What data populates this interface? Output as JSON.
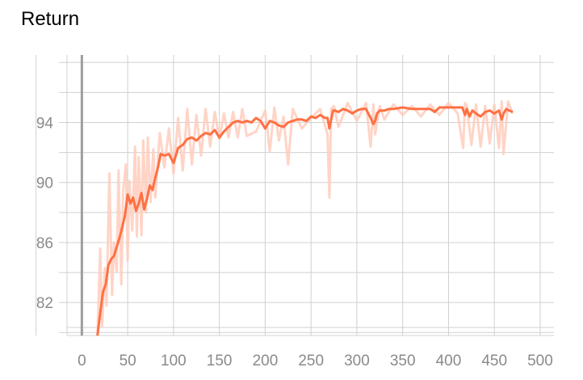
{
  "chart_data": {
    "type": "line",
    "title": "Return",
    "xlabel": "",
    "ylabel": "",
    "xlim": [
      -25,
      515
    ],
    "ylim": [
      79.8,
      98.5
    ],
    "x_ticks": [
      0,
      50,
      100,
      150,
      200,
      250,
      300,
      350,
      400,
      450,
      500
    ],
    "y_ticks": [
      82,
      86,
      90,
      94
    ],
    "grid": true,
    "colors": {
      "smoothed": "#ff7043",
      "raw": "#ffccbc",
      "zero_line": "#9e9e9e",
      "grid": "#d0d0d0",
      "tick_label": "#8a8a8a"
    },
    "series": [
      {
        "x": [
          17,
          20,
          23,
          26,
          29,
          32,
          35,
          38,
          41,
          44,
          47,
          50,
          53,
          56,
          59,
          62,
          65,
          68,
          71,
          74,
          77,
          80,
          83,
          86,
          90,
          95,
          100,
          105,
          110,
          115,
          120,
          125,
          130,
          135,
          140,
          145,
          150,
          155,
          160,
          165,
          170,
          175,
          180,
          185,
          190,
          195,
          200,
          205,
          210,
          215,
          220,
          225,
          230,
          235,
          240,
          245,
          250,
          255,
          260,
          265,
          268,
          270,
          272,
          274,
          276,
          280,
          285,
          290,
          295,
          300,
          305,
          310,
          315,
          318,
          320,
          322,
          325,
          330,
          335,
          340,
          350,
          360,
          370,
          380,
          385,
          390,
          400,
          410,
          415,
          418,
          420,
          423,
          426,
          430,
          435,
          440,
          445,
          450,
          455,
          458,
          460,
          463,
          466,
          470
        ],
        "values": [
          79.8,
          81.3,
          82.7,
          83.2,
          84.5,
          84.9,
          85.1,
          85.7,
          86.3,
          87.0,
          87.8,
          89.2,
          88.6,
          89.0,
          88.1,
          88.6,
          89.3,
          88.2,
          88.9,
          89.8,
          89.5,
          90.3,
          91.0,
          91.9,
          91.8,
          91.9,
          91.3,
          92.3,
          92.5,
          92.9,
          93.0,
          92.8,
          93.1,
          93.3,
          93.2,
          93.5,
          93.0,
          93.4,
          93.7,
          94.0,
          94.1,
          94.0,
          94.1,
          94.0,
          94.3,
          94.1,
          93.6,
          94.1,
          94.0,
          93.8,
          93.7,
          94.0,
          94.1,
          94.2,
          94.2,
          94.1,
          94.4,
          94.3,
          94.5,
          94.3,
          94.3,
          93.6,
          94.2,
          94.8,
          94.8,
          94.7,
          94.9,
          94.8,
          94.6,
          94.8,
          94.9,
          94.9,
          94.3,
          93.9,
          94.1,
          94.6,
          94.8,
          94.8,
          94.9,
          94.9,
          95.0,
          94.9,
          94.9,
          94.9,
          94.7,
          95.0,
          95.0,
          95.0,
          95.0,
          94.5,
          94.9,
          94.4,
          94.8,
          94.6,
          94.4,
          94.7,
          94.8,
          94.6,
          94.8,
          94.2,
          94.6,
          94.9,
          94.8,
          94.7
        ]
      },
      {
        "x": [
          17,
          20,
          22,
          25,
          27,
          30,
          33,
          35,
          38,
          40,
          43,
          45,
          48,
          50,
          52,
          55,
          58,
          60,
          62,
          65,
          67,
          70,
          72,
          75,
          78,
          80,
          85,
          90,
          95,
          100,
          105,
          110,
          115,
          120,
          125,
          130,
          135,
          140,
          145,
          150,
          155,
          160,
          165,
          170,
          175,
          180,
          190,
          200,
          205,
          210,
          215,
          220,
          225,
          230,
          240,
          250,
          260,
          268,
          270,
          272,
          275,
          280,
          290,
          300,
          310,
          315,
          318,
          320,
          325,
          330,
          340,
          350,
          360,
          370,
          380,
          390,
          400,
          410,
          416,
          418,
          420,
          425,
          430,
          435,
          440,
          445,
          450,
          455,
          458,
          460,
          465,
          470
        ],
        "values": [
          79.8,
          85.6,
          80.4,
          84.3,
          81.8,
          90.6,
          82.5,
          86.0,
          84.1,
          90.8,
          83.2,
          89.4,
          91.2,
          84.8,
          90.1,
          86.8,
          92.4,
          86.4,
          91.7,
          86.5,
          92.8,
          88.0,
          93.0,
          88.7,
          92.2,
          89.0,
          93.3,
          91.0,
          93.6,
          90.6,
          94.3,
          90.8,
          94.9,
          91.2,
          94.5,
          91.8,
          94.9,
          92.4,
          94.7,
          92.9,
          94.6,
          93.0,
          94.7,
          93.0,
          94.9,
          93.1,
          93.4,
          94.8,
          92.1,
          95.0,
          92.8,
          94.4,
          91.2,
          94.9,
          93.6,
          94.3,
          94.9,
          93.2,
          89.0,
          94.9,
          95.1,
          93.7,
          95.3,
          94.1,
          95.3,
          92.4,
          95.2,
          93.2,
          95.1,
          94.2,
          95.2,
          94.5,
          95.1,
          94.4,
          95.2,
          94.5,
          95.3,
          94.6,
          92.3,
          95.3,
          95.1,
          92.5,
          95.2,
          92.4,
          95.1,
          92.6,
          95.2,
          92.3,
          95.4,
          91.9,
          95.4,
          94.6
        ]
      }
    ]
  }
}
